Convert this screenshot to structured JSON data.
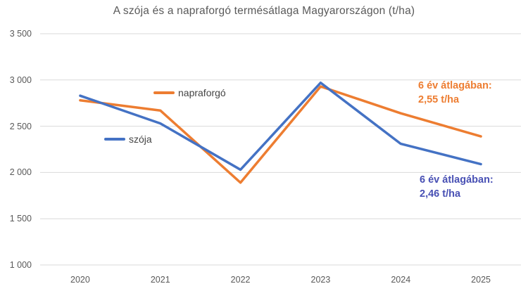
{
  "title": "A szója és a napraforgó termésátlaga Magyarországon (t/ha)",
  "chart_data": {
    "type": "line",
    "categories": [
      "2020",
      "2021",
      "2022",
      "2023",
      "2024",
      "2025"
    ],
    "series": [
      {
        "name": "napraforgó",
        "color": "#ED7D31",
        "values": [
          2780,
          2670,
          1890,
          2930,
          2640,
          2390
        ]
      },
      {
        "name": "szója",
        "color": "#4472C4",
        "values": [
          2830,
          2530,
          2030,
          2970,
          2310,
          2090
        ]
      }
    ],
    "yticks": [
      {
        "value": 3500,
        "label": "3 500"
      },
      {
        "value": 3000,
        "label": "3 000"
      },
      {
        "value": 2500,
        "label": "2 500"
      },
      {
        "value": 2000,
        "label": "2 000"
      },
      {
        "value": 1500,
        "label": "1 500"
      },
      {
        "value": 1000,
        "label": "1 000"
      }
    ],
    "ylim": [
      1000,
      3500
    ],
    "grid": true,
    "grid_color": "#D9D9D9",
    "legend_position": "inside-plot",
    "annotations": [
      {
        "series": "napraforgó",
        "lines": [
          "6 év átlagában:",
          "2,55 t/ha"
        ],
        "color": "#ED7D31"
      },
      {
        "series": "szója",
        "lines": [
          "6 év átlagában:",
          "2,46 t/ha"
        ],
        "color": "#4850B4"
      }
    ]
  }
}
